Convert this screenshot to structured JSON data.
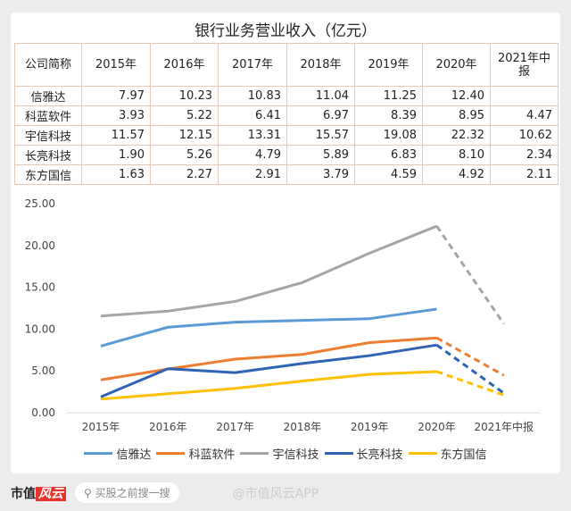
{
  "chart_data": {
    "type": "line",
    "title": "银行业务营业收入（亿元）",
    "table_header": [
      "公司简称",
      "2015年",
      "2016年",
      "2017年",
      "2018年",
      "2019年",
      "2020年",
      "2021年中报"
    ],
    "table_rows": [
      [
        "信雅达",
        "7.97",
        "10.23",
        "10.83",
        "11.04",
        "11.25",
        "12.40",
        ""
      ],
      [
        "科蓝软件",
        "3.93",
        "5.22",
        "6.41",
        "6.97",
        "8.39",
        "8.95",
        "4.47"
      ],
      [
        "宇信科技",
        "11.57",
        "12.15",
        "13.31",
        "15.57",
        "19.08",
        "22.32",
        "10.62"
      ],
      [
        "长亮科技",
        "1.90",
        "5.26",
        "4.79",
        "5.89",
        "6.83",
        "8.10",
        "2.34"
      ],
      [
        "东方国信",
        "1.63",
        "2.27",
        "2.91",
        "3.79",
        "4.59",
        "4.92",
        "2.11"
      ]
    ],
    "categories": [
      "2015年",
      "2016年",
      "2017年",
      "2018年",
      "2019年",
      "2020年",
      "2021年中报"
    ],
    "series": [
      {
        "name": "信雅达",
        "color": "#5b9bd5",
        "values": [
          7.97,
          10.23,
          10.83,
          11.04,
          11.25,
          12.4,
          null
        ]
      },
      {
        "name": "科蓝软件",
        "color": "#ed7d31",
        "values": [
          3.93,
          5.22,
          6.41,
          6.97,
          8.39,
          8.95,
          4.47
        ]
      },
      {
        "name": "宇信科技",
        "color": "#a5a5a5",
        "values": [
          11.57,
          12.15,
          13.31,
          15.57,
          19.08,
          22.32,
          10.62
        ]
      },
      {
        "name": "长亮科技",
        "color": "#2f63b4",
        "values": [
          1.9,
          5.26,
          4.79,
          5.89,
          6.83,
          8.1,
          2.34
        ]
      },
      {
        "name": "东方国信",
        "color": "#ffc000",
        "values": [
          1.63,
          2.27,
          2.91,
          3.79,
          4.59,
          4.92,
          2.11
        ]
      }
    ],
    "yticks": [
      "0.00",
      "5.00",
      "10.00",
      "15.00",
      "20.00",
      "25.00"
    ],
    "ylim": [
      0,
      25
    ],
    "legend": "bottom",
    "note": "2021年中报 segment drawn dashed"
  },
  "footer": {
    "logo_text": "市值",
    "logo_badge": "风云",
    "search_placeholder": "买股之前搜一搜",
    "watermark": "@市值风云APP"
  }
}
